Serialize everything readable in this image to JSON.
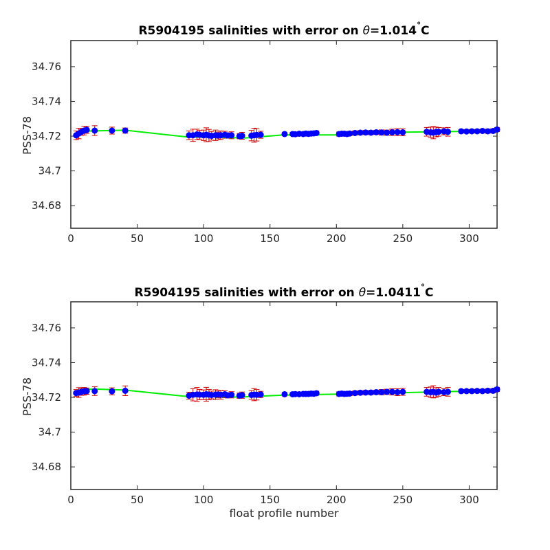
{
  "chart_data": [
    {
      "type": "scatter",
      "title": "R5904195 salinities with error on θ=1.014°C",
      "title_parts": {
        "prefix": "R5904195 salinities with error on ",
        "theta": "θ",
        "value": "=1.014",
        "degree": "°",
        "unit": "C"
      },
      "xlabel": "",
      "ylabel": "PSS-78",
      "xlim": [
        0,
        321
      ],
      "ylim": [
        34.667,
        34.775
      ],
      "xticks": [
        0,
        50,
        100,
        150,
        200,
        250,
        300
      ],
      "yticks": [
        34.68,
        34.7,
        34.72,
        34.74,
        34.76
      ],
      "ytick_labels": [
        "34.68",
        "34.7",
        "34.72",
        "34.74",
        "34.76"
      ],
      "marker_color": "#0000ff",
      "errorbar_color": "#cc0000",
      "fit_color": "#00ee00",
      "profiles": [
        4,
        6,
        8,
        10,
        12,
        18,
        31,
        41,
        89,
        92,
        95,
        97,
        100,
        102,
        104,
        106,
        109,
        111,
        113,
        116,
        118,
        121,
        127,
        129,
        136,
        138,
        140,
        143,
        161,
        167,
        169,
        172,
        175,
        177,
        179,
        181,
        183,
        185,
        202,
        204,
        206,
        208,
        210,
        214,
        218,
        222,
        226,
        230,
        234,
        238,
        242,
        246,
        250,
        268,
        271,
        273,
        275,
        277,
        281,
        284,
        294,
        298,
        302,
        306,
        310,
        314,
        318,
        321
      ],
      "salinity": [
        34.7205,
        34.7215,
        34.7225,
        34.7232,
        34.7236,
        34.7232,
        34.7232,
        34.7232,
        34.7205,
        34.7205,
        34.721,
        34.7208,
        34.7205,
        34.7208,
        34.7204,
        34.7202,
        34.7205,
        34.7204,
        34.7205,
        34.7208,
        34.7204,
        34.7205,
        34.72,
        34.7202,
        34.7203,
        34.7205,
        34.7207,
        34.7208,
        34.7212,
        34.7212,
        34.7211,
        34.7214,
        34.7212,
        34.7215,
        34.7213,
        34.7215,
        34.7216,
        34.7218,
        34.7212,
        34.7214,
        34.7214,
        34.7212,
        34.7215,
        34.7218,
        34.722,
        34.7221,
        34.722,
        34.7222,
        34.7221,
        34.722,
        34.7222,
        34.7223,
        34.7222,
        34.7225,
        34.7222,
        34.722,
        34.7224,
        34.7225,
        34.7228,
        34.7225,
        34.7228,
        34.7227,
        34.7228,
        34.7228,
        34.723,
        34.7228,
        34.723,
        34.7238
      ],
      "error": [
        0.0025,
        0.003,
        0.002,
        0.0025,
        0.002,
        0.0028,
        0.002,
        0.0015,
        0.0025,
        0.0035,
        0.003,
        0.0025,
        0.003,
        0.004,
        0.0035,
        0.0025,
        0.003,
        0.002,
        0.0025,
        0.002,
        0.0015,
        0.002,
        0.0015,
        0.002,
        0.003,
        0.004,
        0.0035,
        0.002,
        0.001,
        0.001,
        0.0012,
        0.001,
        0.001,
        0.0012,
        0.001,
        0.0012,
        0.001,
        0.0012,
        0.0012,
        0.0012,
        0.001,
        0.0012,
        0.0012,
        0.0012,
        0.0012,
        0.0012,
        0.0012,
        0.0012,
        0.0015,
        0.0015,
        0.0018,
        0.002,
        0.002,
        0.0025,
        0.003,
        0.0035,
        0.0028,
        0.0025,
        0.002,
        0.0025,
        0.001,
        0.001,
        0.001,
        0.001,
        0.001,
        0.0012,
        0.0012,
        0.0012
      ],
      "fit_x": [
        5,
        41,
        88,
        132,
        160,
        202,
        250,
        300,
        321
      ],
      "fit_y": [
        34.7228,
        34.7234,
        34.7195,
        34.719,
        34.7207,
        34.7207,
        34.7223,
        34.7228,
        34.7228
      ]
    },
    {
      "type": "scatter",
      "title": "R5904195 salinities with error on θ=1.0411°C",
      "title_parts": {
        "prefix": "R5904195 salinities with error on ",
        "theta": "θ",
        "value": "=1.0411",
        "degree": "°",
        "unit": "C"
      },
      "xlabel": "float profile number",
      "ylabel": "PSS-78",
      "xlim": [
        0,
        321
      ],
      "ylim": [
        34.667,
        34.775
      ],
      "xticks": [
        0,
        50,
        100,
        150,
        200,
        250,
        300
      ],
      "yticks": [
        34.68,
        34.7,
        34.72,
        34.74,
        34.76
      ],
      "ytick_labels": [
        "34.68",
        "34.7",
        "34.72",
        "34.74",
        "34.76"
      ],
      "marker_color": "#0000ff",
      "errorbar_color": "#cc0000",
      "fit_color": "#00ee00",
      "profiles": [
        4,
        6,
        8,
        10,
        12,
        18,
        31,
        41,
        89,
        92,
        95,
        97,
        100,
        102,
        104,
        106,
        109,
        111,
        113,
        116,
        118,
        121,
        127,
        129,
        136,
        138,
        140,
        143,
        161,
        167,
        169,
        172,
        175,
        177,
        179,
        181,
        183,
        185,
        202,
        204,
        206,
        208,
        210,
        214,
        218,
        222,
        226,
        230,
        234,
        238,
        242,
        246,
        250,
        268,
        271,
        273,
        275,
        277,
        281,
        284,
        294,
        298,
        302,
        306,
        310,
        314,
        318,
        321
      ],
      "salinity": [
        34.7225,
        34.7228,
        34.7232,
        34.7235,
        34.7236,
        34.7236,
        34.7235,
        34.7238,
        34.721,
        34.7215,
        34.7217,
        34.7216,
        34.7215,
        34.7218,
        34.7216,
        34.7214,
        34.7216,
        34.7217,
        34.7215,
        34.7218,
        34.7212,
        34.7215,
        34.721,
        34.7213,
        34.7214,
        34.7216,
        34.7215,
        34.7217,
        34.7218,
        34.7218,
        34.7219,
        34.7218,
        34.722,
        34.722,
        34.722,
        34.7222,
        34.7221,
        34.7224,
        34.722,
        34.7222,
        34.722,
        34.7221,
        34.7222,
        34.7225,
        34.7227,
        34.7228,
        34.7228,
        34.723,
        34.723,
        34.7232,
        34.7232,
        34.723,
        34.7232,
        34.7232,
        34.723,
        34.7232,
        34.7228,
        34.7232,
        34.723,
        34.7232,
        34.7236,
        34.7236,
        34.7236,
        34.7237,
        34.7236,
        34.7238,
        34.7238,
        34.7246
      ],
      "error": [
        0.002,
        0.0028,
        0.002,
        0.0022,
        0.0018,
        0.0025,
        0.002,
        0.0028,
        0.002,
        0.0035,
        0.004,
        0.003,
        0.0028,
        0.004,
        0.003,
        0.0022,
        0.0028,
        0.002,
        0.0025,
        0.002,
        0.0015,
        0.0018,
        0.0015,
        0.0018,
        0.0025,
        0.0035,
        0.003,
        0.0018,
        0.001,
        0.001,
        0.0012,
        0.001,
        0.001,
        0.0012,
        0.001,
        0.0012,
        0.001,
        0.0012,
        0.0012,
        0.0012,
        0.001,
        0.0012,
        0.0012,
        0.0012,
        0.0012,
        0.0012,
        0.0012,
        0.0012,
        0.0015,
        0.0015,
        0.0018,
        0.002,
        0.002,
        0.0025,
        0.003,
        0.0035,
        0.0028,
        0.0025,
        0.002,
        0.0025,
        0.001,
        0.001,
        0.001,
        0.001,
        0.001,
        0.0012,
        0.0012,
        0.0012
      ],
      "fit_x": [
        5,
        18,
        41,
        88,
        128,
        160,
        202,
        268,
        300,
        321
      ],
      "fit_y": [
        34.7242,
        34.7248,
        34.7242,
        34.7205,
        34.7202,
        34.7213,
        34.7219,
        34.723,
        34.7236,
        34.7238
      ]
    }
  ]
}
